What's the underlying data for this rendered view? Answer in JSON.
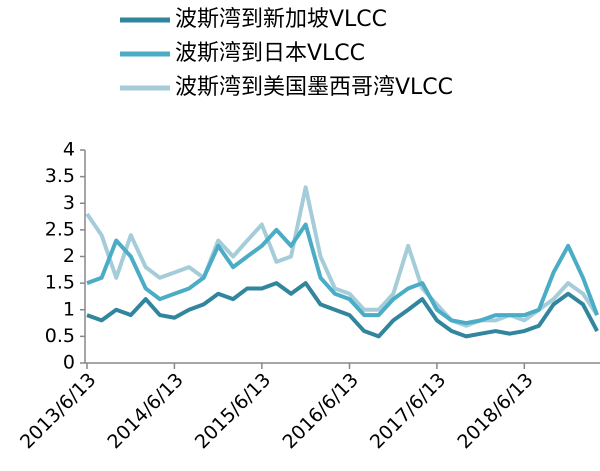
{
  "chart_data": {
    "type": "line",
    "x": [
      "2013/6/13",
      "2013/8/13",
      "2013/10/13",
      "2013/12/13",
      "2014/2/13",
      "2014/4/13",
      "2014/6/13",
      "2014/8/13",
      "2014/10/13",
      "2014/12/13",
      "2015/2/13",
      "2015/4/13",
      "2015/6/13",
      "2015/8/13",
      "2015/10/13",
      "2015/12/13",
      "2016/2/13",
      "2016/4/13",
      "2016/6/13",
      "2016/8/13",
      "2016/10/13",
      "2016/12/13",
      "2017/2/13",
      "2017/4/13",
      "2017/6/13",
      "2017/8/13",
      "2017/10/13",
      "2017/12/13",
      "2018/2/13",
      "2018/4/13",
      "2018/6/13",
      "2018/8/13",
      "2018/10/13",
      "2018/12/13",
      "2019/2/13",
      "2019/4/13"
    ],
    "series": [
      {
        "name": "波斯湾到新加坡VLCC",
        "color": "#31859c",
        "values": [
          0.9,
          0.8,
          1.0,
          0.9,
          1.2,
          0.9,
          0.85,
          1.0,
          1.1,
          1.3,
          1.2,
          1.4,
          1.4,
          1.5,
          1.3,
          1.5,
          1.1,
          1.0,
          0.9,
          0.6,
          0.5,
          0.8,
          1.0,
          1.2,
          0.8,
          0.6,
          0.5,
          0.55,
          0.6,
          0.55,
          0.6,
          0.7,
          1.1,
          1.3,
          1.1,
          0.6
        ]
      },
      {
        "name": "波斯湾到日本VLCC",
        "color": "#4bacc6",
        "values": [
          1.5,
          1.6,
          2.3,
          2.0,
          1.4,
          1.2,
          1.3,
          1.4,
          1.6,
          2.2,
          1.8,
          2.0,
          2.2,
          2.5,
          2.2,
          2.6,
          1.6,
          1.3,
          1.2,
          0.9,
          0.9,
          1.2,
          1.4,
          1.5,
          1.0,
          0.8,
          0.75,
          0.8,
          0.9,
          0.9,
          0.9,
          1.0,
          1.7,
          2.2,
          1.6,
          0.9
        ]
      },
      {
        "name": "波斯湾到美国墨西哥湾VLCC",
        "color": "#a5cdd9",
        "values": [
          2.8,
          2.4,
          1.6,
          2.4,
          1.8,
          1.6,
          1.7,
          1.8,
          1.6,
          2.3,
          2.0,
          2.3,
          2.6,
          1.9,
          2.0,
          3.3,
          2.0,
          1.4,
          1.3,
          1.0,
          1.0,
          1.3,
          2.2,
          1.4,
          1.1,
          0.8,
          0.7,
          0.8,
          0.8,
          0.9,
          0.8,
          1.0,
          1.2,
          1.5,
          1.3,
          0.9
        ]
      }
    ],
    "xlim": [
      "2013/6/13",
      "2019/4/25"
    ],
    "xticks": [
      "2013/6/13",
      "2014/6/13",
      "2015/6/13",
      "2016/6/13",
      "2017/6/13",
      "2018/6/13"
    ],
    "ylim": [
      0,
      4
    ],
    "yticks": [
      0,
      0.5,
      1,
      1.5,
      2,
      2.5,
      3,
      3.5,
      4
    ]
  }
}
